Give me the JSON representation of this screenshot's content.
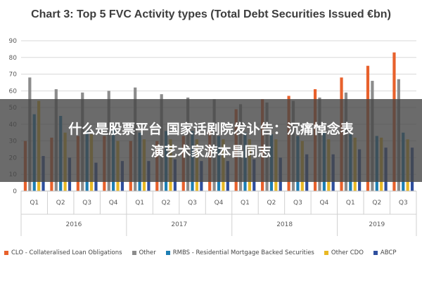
{
  "overlay": {
    "line1": "什么是股票平台 国家话剧院发讣告：沉痛悼念表",
    "line2": "演艺术家游本昌同志"
  },
  "chart_data": {
    "type": "bar",
    "title": "Chart 3: Top 5 FVC Activity types (Total Debt Securities Issued €bn)",
    "xlabel": "",
    "ylabel": "",
    "ylim": [
      0,
      90
    ],
    "yticks": [
      0,
      10,
      20,
      30,
      40,
      50,
      60,
      70,
      80,
      90
    ],
    "grid": true,
    "legend_position": "bottom",
    "categories": [
      "Q1",
      "Q2",
      "Q3",
      "Q4",
      "Q1",
      "Q2",
      "Q3",
      "Q4",
      "Q1",
      "Q2",
      "Q3",
      "Q4",
      "Q1",
      "Q2",
      "Q3"
    ],
    "years": [
      {
        "label": "2016",
        "count": 4
      },
      {
        "label": "2017",
        "count": 4
      },
      {
        "label": "2018",
        "count": 4
      },
      {
        "label": "2019",
        "count": 3
      }
    ],
    "series": [
      {
        "name": "CLO - Collateralised Loan Obligations",
        "color": "#e8612c",
        "values": [
          30,
          32,
          33,
          33,
          30,
          30,
          33,
          36,
          49,
          55,
          57,
          61,
          68,
          75,
          83
        ]
      },
      {
        "name": "Other",
        "color": "#8c8c8c",
        "values": [
          68,
          61,
          59,
          60,
          62,
          58,
          56,
          55,
          52,
          53,
          54,
          56,
          59,
          66,
          67
        ]
      },
      {
        "name": "RMBS - Residential Mortgage Backed Securities",
        "color": "#1d7fb4",
        "values": [
          46,
          45,
          36,
          37,
          35,
          36,
          36,
          33,
          35,
          34,
          33,
          35,
          34,
          33,
          35
        ]
      },
      {
        "name": "Other CDO",
        "color": "#e9b824",
        "values": [
          54,
          35,
          34,
          30,
          31,
          31,
          31,
          31,
          31,
          31,
          30,
          31,
          32,
          32,
          31
        ]
      },
      {
        "name": "ABCP",
        "color": "#2f4f9e",
        "values": [
          21,
          20,
          17,
          18,
          18,
          19,
          18,
          18,
          19,
          20,
          22,
          22,
          25,
          26,
          26
        ]
      }
    ]
  }
}
